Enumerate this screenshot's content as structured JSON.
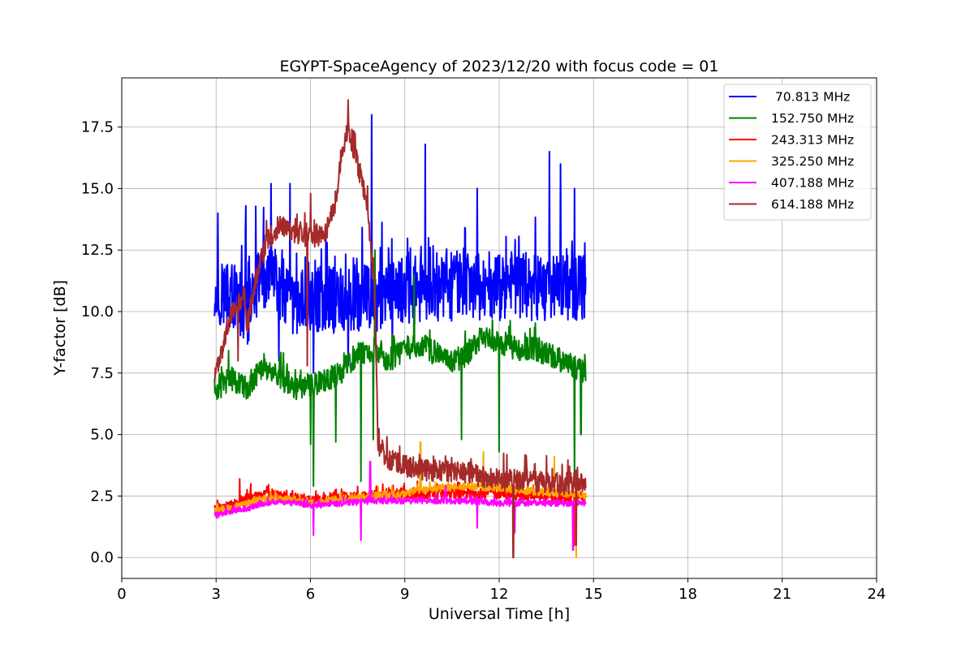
{
  "chart_data": {
    "type": "line",
    "title": "EGYPT-SpaceAgency of 2023/12/20 with focus code = 01",
    "xlabel": "Universal Time [h]",
    "ylabel": "Y-factor [dB]",
    "xlim": [
      0,
      24
    ],
    "ylim": [
      -0.85,
      19.5
    ],
    "xticks": [
      0,
      3,
      6,
      9,
      12,
      15,
      18,
      21,
      24
    ],
    "yticks": [
      0.0,
      2.5,
      5.0,
      7.5,
      10.0,
      12.5,
      15.0,
      17.5
    ],
    "ytick_labels": [
      "0.0",
      "2.5",
      "5.0",
      "7.5",
      "10.0",
      "12.5",
      "15.0",
      "17.5"
    ],
    "grid": true,
    "legend_position": "top-right",
    "x_range_of_data": [
      2.95,
      14.75
    ],
    "series": [
      {
        "name": "70.813 MHz",
        "legend_label": " 70.813 MHz",
        "color": "#0000ff",
        "base_points": [
          [
            2.95,
            11.0
          ],
          [
            3.5,
            10.5
          ],
          [
            4.0,
            10.0
          ],
          [
            4.5,
            11.5
          ],
          [
            5.0,
            10.8
          ],
          [
            5.5,
            10.0
          ],
          [
            6.0,
            10.5
          ],
          [
            7.0,
            10.5
          ],
          [
            8.0,
            10.5
          ],
          [
            9.0,
            10.8
          ],
          [
            10.0,
            11.0
          ],
          [
            11.0,
            11.0
          ],
          [
            12.0,
            11.0
          ],
          [
            13.0,
            11.0
          ],
          [
            14.0,
            11.0
          ],
          [
            14.75,
            11.0
          ]
        ],
        "noise": 1.4,
        "spikes": [
          [
            3.05,
            14.0
          ],
          [
            3.95,
            14.3
          ],
          [
            4.75,
            15.2
          ],
          [
            5.35,
            15.2
          ],
          [
            7.95,
            18.0
          ],
          [
            9.65,
            16.8
          ],
          [
            11.3,
            15.0
          ],
          [
            13.6,
            16.5
          ],
          [
            13.95,
            16.0
          ],
          [
            14.4,
            15.0
          ]
        ],
        "dips": [
          [
            5.0,
            8.0
          ],
          [
            6.1,
            7.5
          ],
          [
            7.2,
            7.8
          ],
          [
            8.6,
            7.8
          ]
        ]
      },
      {
        "name": "152.750 MHz",
        "legend_label": "152.750 MHz",
        "color": "#008000",
        "base_points": [
          [
            2.95,
            6.8
          ],
          [
            3.5,
            7.3
          ],
          [
            4.0,
            6.9
          ],
          [
            4.5,
            7.8
          ],
          [
            5.0,
            7.3
          ],
          [
            5.5,
            6.9
          ],
          [
            6.0,
            7.0
          ],
          [
            6.5,
            7.2
          ],
          [
            7.0,
            7.6
          ],
          [
            7.5,
            8.3
          ],
          [
            8.0,
            8.5
          ],
          [
            8.5,
            8.0
          ],
          [
            9.0,
            8.5
          ],
          [
            9.5,
            8.6
          ],
          [
            10.0,
            8.3
          ],
          [
            10.5,
            7.9
          ],
          [
            11.0,
            8.3
          ],
          [
            11.5,
            9.0
          ],
          [
            12.0,
            8.8
          ],
          [
            12.5,
            8.5
          ],
          [
            13.0,
            8.5
          ],
          [
            13.5,
            8.3
          ],
          [
            14.0,
            8.0
          ],
          [
            14.75,
            7.5
          ]
        ],
        "noise": 0.5,
        "spikes": [
          [
            8.05,
            12.5
          ],
          [
            9.3,
            11.5
          ]
        ],
        "dips": [
          [
            6.0,
            4.6
          ],
          [
            6.1,
            2.9
          ],
          [
            6.8,
            4.7
          ],
          [
            7.6,
            3.1
          ],
          [
            8.0,
            4.8
          ],
          [
            10.8,
            4.8
          ],
          [
            12.0,
            4.3
          ],
          [
            14.4,
            3.0
          ],
          [
            14.6,
            5.0
          ]
        ]
      },
      {
        "name": "243.313 MHz",
        "legend_label": "243.313 MHz",
        "color": "#ff0000",
        "base_points": [
          [
            2.95,
            1.9
          ],
          [
            3.5,
            2.1
          ],
          [
            4.0,
            2.4
          ],
          [
            4.5,
            2.5
          ],
          [
            5.0,
            2.5
          ],
          [
            6.0,
            2.3
          ],
          [
            7.0,
            2.4
          ],
          [
            8.0,
            2.5
          ],
          [
            9.0,
            2.6
          ],
          [
            10.0,
            2.6
          ],
          [
            11.0,
            2.6
          ],
          [
            12.0,
            2.6
          ],
          [
            13.0,
            2.5
          ],
          [
            14.0,
            2.4
          ],
          [
            14.75,
            2.5
          ]
        ],
        "noise": 0.22,
        "spikes": [
          [
            3.75,
            3.2
          ],
          [
            4.1,
            3.0
          ],
          [
            8.1,
            2.9
          ],
          [
            9.4,
            3.1
          ],
          [
            11.0,
            3.0
          ]
        ],
        "dips": [
          [
            14.4,
            0.5
          ]
        ]
      },
      {
        "name": "325.250 MHz",
        "legend_label": "325.250 MHz",
        "color": "#ffa500",
        "base_points": [
          [
            2.95,
            1.9
          ],
          [
            3.5,
            2.0
          ],
          [
            4.0,
            2.2
          ],
          [
            4.5,
            2.4
          ],
          [
            5.0,
            2.4
          ],
          [
            6.0,
            2.2
          ],
          [
            7.0,
            2.4
          ],
          [
            8.0,
            2.5
          ],
          [
            9.0,
            2.6
          ],
          [
            10.0,
            2.8
          ],
          [
            11.0,
            2.9
          ],
          [
            12.0,
            2.8
          ],
          [
            13.0,
            2.7
          ],
          [
            14.0,
            2.6
          ],
          [
            14.75,
            2.5
          ]
        ],
        "noise": 0.15,
        "spikes": [
          [
            9.5,
            4.7
          ],
          [
            11.5,
            4.3
          ],
          [
            13.75,
            4.1
          ]
        ],
        "dips": [
          [
            14.45,
            0.0
          ]
        ]
      },
      {
        "name": "407.188 MHz",
        "legend_label": "407.188 MHz",
        "color": "#ff00ff",
        "base_points": [
          [
            2.95,
            1.7
          ],
          [
            3.5,
            1.9
          ],
          [
            4.0,
            2.0
          ],
          [
            4.5,
            2.2
          ],
          [
            5.0,
            2.3
          ],
          [
            6.0,
            2.1
          ],
          [
            7.0,
            2.2
          ],
          [
            8.0,
            2.3
          ],
          [
            9.0,
            2.3
          ],
          [
            10.0,
            2.3
          ],
          [
            11.0,
            2.3
          ],
          [
            12.0,
            2.2
          ],
          [
            13.0,
            2.2
          ],
          [
            14.0,
            2.2
          ],
          [
            14.75,
            2.2
          ]
        ],
        "noise": 0.12,
        "spikes": [
          [
            7.9,
            3.9
          ],
          [
            10.3,
            2.9
          ]
        ],
        "dips": [
          [
            6.1,
            0.9
          ],
          [
            7.6,
            0.7
          ],
          [
            11.3,
            1.2
          ],
          [
            12.5,
            1.0
          ],
          [
            14.35,
            0.3
          ]
        ]
      },
      {
        "name": "614.188 MHz",
        "legend_label": "614.188 MHz",
        "color": "#a52a2a",
        "base_points": [
          [
            2.95,
            7.2
          ],
          [
            3.2,
            8.5
          ],
          [
            3.5,
            10.0
          ],
          [
            3.8,
            10.5
          ],
          [
            4.0,
            9.5
          ],
          [
            4.3,
            11.5
          ],
          [
            4.6,
            12.8
          ],
          [
            5.0,
            13.5
          ],
          [
            5.5,
            13.2
          ],
          [
            6.0,
            13.0
          ],
          [
            6.5,
            13.2
          ],
          [
            6.8,
            14.5
          ],
          [
            7.0,
            16.5
          ],
          [
            7.2,
            17.5
          ],
          [
            7.5,
            16.0
          ],
          [
            7.8,
            14.5
          ],
          [
            8.05,
            10.5
          ],
          [
            8.15,
            4.5
          ],
          [
            8.5,
            4.0
          ],
          [
            9.0,
            3.7
          ],
          [
            10.0,
            3.5
          ],
          [
            11.0,
            3.4
          ],
          [
            12.0,
            3.2
          ],
          [
            13.0,
            3.1
          ],
          [
            14.0,
            3.0
          ],
          [
            14.75,
            3.0
          ]
        ],
        "noise": 0.45,
        "spikes": [
          [
            7.2,
            18.6
          ],
          [
            6.0,
            14.8
          ]
        ],
        "dips": [
          [
            5.9,
            7.8
          ],
          [
            3.7,
            8.0
          ],
          [
            12.45,
            0.0
          ],
          [
            14.45,
            0.5
          ]
        ]
      }
    ]
  }
}
